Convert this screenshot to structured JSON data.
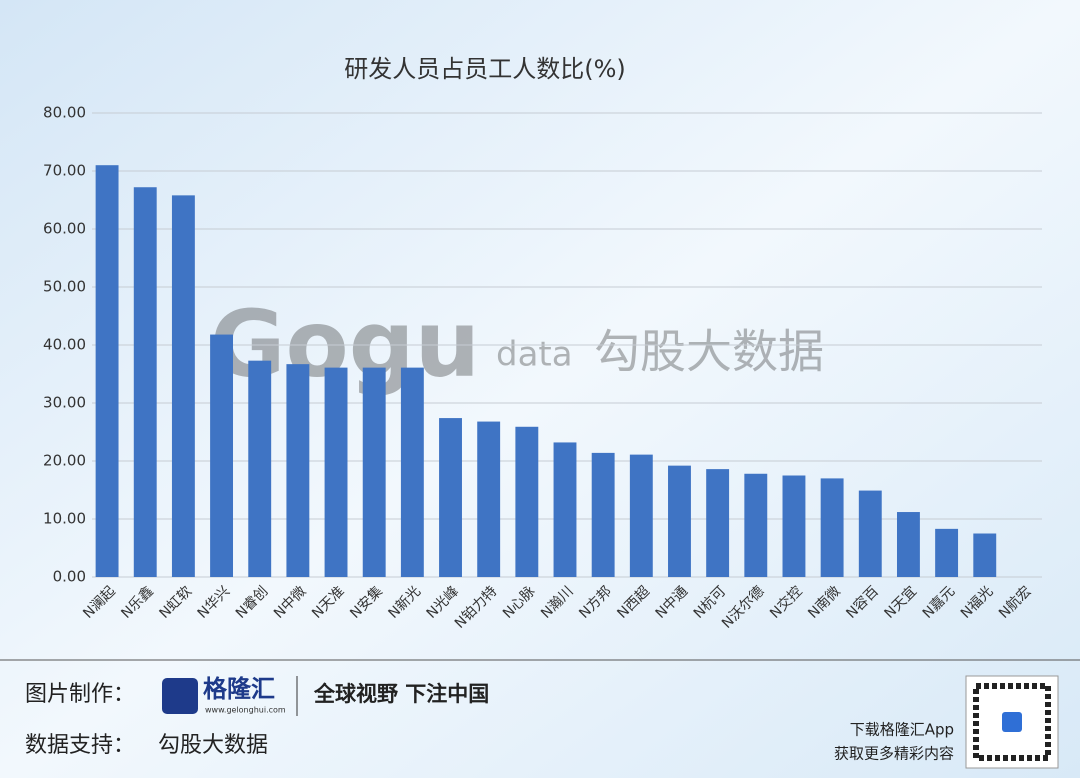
{
  "chart_data": {
    "type": "bar",
    "title": "研发人员占员工人数比(%)",
    "categories": [
      "N澜起",
      "N乐鑫",
      "N虹软",
      "N华兴",
      "N睿创",
      "N中微",
      "N天准",
      "N安集",
      "N新光",
      "N光峰",
      "N铂力特",
      "N心脉",
      "N瀚川",
      "N方邦",
      "N西超",
      "N中通",
      "N杭可",
      "N沃尔德",
      "N交控",
      "N南微",
      "N容百",
      "N天宜",
      "N嘉元",
      "N福光",
      "N航宏"
    ],
    "values": [
      71.0,
      67.2,
      65.8,
      41.8,
      37.3,
      36.7,
      36.1,
      36.1,
      36.1,
      27.4,
      26.8,
      25.9,
      23.2,
      21.4,
      21.1,
      19.2,
      18.6,
      17.8,
      17.5,
      17.0,
      14.9,
      11.2,
      8.3,
      7.5,
      null
    ],
    "color": "#3f74c4",
    "ylim": [
      0,
      80
    ],
    "yticks": [
      {
        "value": 0,
        "label": "0.00"
      },
      {
        "value": 10,
        "label": "10.00"
      },
      {
        "value": 20,
        "label": "20.00"
      },
      {
        "value": 30,
        "label": "30.00"
      },
      {
        "value": 40,
        "label": "40.00"
      },
      {
        "value": 50,
        "label": "50.00"
      },
      {
        "value": 60,
        "label": "60.00"
      },
      {
        "value": 70,
        "label": "70.00"
      },
      {
        "value": 80,
        "label": "80.00"
      }
    ],
    "grid": true
  },
  "watermark": {
    "logo": "Gogu",
    "suffix": "data",
    "name": "勾股大数据"
  },
  "footer": {
    "made_label": "图片制作：",
    "brand": "格隆汇",
    "brand_url": "www.gelonghui.com",
    "slogan": "全球视野 下注中国",
    "data_label": "数据支持：",
    "data_source": "勾股大数据",
    "app_line1": "下载格隆汇App",
    "app_line2": "获取更多精彩内容"
  }
}
